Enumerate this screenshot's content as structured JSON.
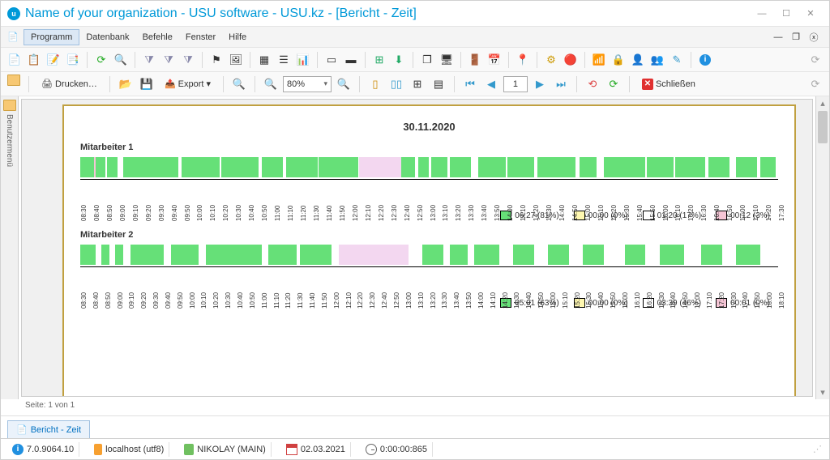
{
  "title": "Name of your organization - USU software - USU.kz - [Bericht - Zeit]",
  "menu": {
    "items": [
      "Programm",
      "Datenbank",
      "Befehle",
      "Fenster",
      "Hilfe"
    ],
    "active": 0
  },
  "sidetab": {
    "label": "Benutzermenü"
  },
  "toolbar2": {
    "print": "Drucken…",
    "export": "Export",
    "zoom": "80%",
    "page_current": "1",
    "close": "Schließen"
  },
  "report": {
    "date": "30.11.2020",
    "colors": {
      "green": "#66e078",
      "yellow": "#fff8b0",
      "white": "#ffffff",
      "pink": "#f5c5d5",
      "idle": "#f3d7f0"
    },
    "employees": [
      {
        "label": "Mitarbeiter 1",
        "ticks_start": "08:30",
        "ticks_end": "17:30",
        "tick_min": 10,
        "segments": [
          {
            "s": 0,
            "e": 2.0,
            "c": "green"
          },
          {
            "s": 2.0,
            "e": 2.2,
            "c": "pink"
          },
          {
            "s": 2.2,
            "e": 3.6,
            "c": "green"
          },
          {
            "s": 3.8,
            "e": 5.4,
            "c": "green"
          },
          {
            "s": 6.2,
            "e": 14,
            "c": "green"
          },
          {
            "s": 14.5,
            "e": 20,
            "c": "green"
          },
          {
            "s": 20.2,
            "e": 25.5,
            "c": "green"
          },
          {
            "s": 26,
            "e": 29,
            "c": "green"
          },
          {
            "s": 29.5,
            "e": 34,
            "c": "green"
          },
          {
            "s": 34.2,
            "e": 39.8,
            "c": "green"
          },
          {
            "s": 40,
            "e": 46,
            "c": "idle"
          },
          {
            "s": 46,
            "e": 48,
            "c": "green"
          },
          {
            "s": 48.4,
            "e": 50,
            "c": "green"
          },
          {
            "s": 50.3,
            "e": 52.6,
            "c": "green"
          },
          {
            "s": 53,
            "e": 56,
            "c": "green"
          },
          {
            "s": 57,
            "e": 61,
            "c": "green"
          },
          {
            "s": 61.2,
            "e": 65,
            "c": "green"
          },
          {
            "s": 65.5,
            "e": 71,
            "c": "green"
          },
          {
            "s": 71.5,
            "e": 74,
            "c": "green"
          },
          {
            "s": 75,
            "e": 81,
            "c": "green"
          },
          {
            "s": 81.2,
            "e": 85,
            "c": "green"
          },
          {
            "s": 85.2,
            "e": 89.5,
            "c": "green"
          },
          {
            "s": 90,
            "e": 93,
            "c": "green"
          },
          {
            "s": 94,
            "e": 97,
            "c": "green"
          },
          {
            "s": 97.5,
            "e": 99.7,
            "c": "green"
          }
        ],
        "legend": [
          {
            "c": "green",
            "t": "06:27 (81%)"
          },
          {
            "c": "yellow",
            "t": "00:00 (0%)"
          },
          {
            "c": "white",
            "t": "01:20 (17%)"
          },
          {
            "c": "pink",
            "t": "00:12 (3%)"
          }
        ]
      },
      {
        "label": "Mitarbeiter 2",
        "ticks_start": "08:30",
        "ticks_end": "18:10",
        "tick_min": 10,
        "segments": [
          {
            "s": 0,
            "e": 2.2,
            "c": "green"
          },
          {
            "s": 3,
            "e": 4.2,
            "c": "green"
          },
          {
            "s": 5,
            "e": 6.2,
            "c": "green"
          },
          {
            "s": 7.2,
            "e": 12,
            "c": "green"
          },
          {
            "s": 13,
            "e": 17,
            "c": "green"
          },
          {
            "s": 18,
            "e": 26,
            "c": "green"
          },
          {
            "s": 27,
            "e": 31,
            "c": "green"
          },
          {
            "s": 31.5,
            "e": 36,
            "c": "green"
          },
          {
            "s": 37,
            "e": 47,
            "c": "idle"
          },
          {
            "s": 49,
            "e": 52,
            "c": "green"
          },
          {
            "s": 53,
            "e": 55.5,
            "c": "green"
          },
          {
            "s": 56.5,
            "e": 60,
            "c": "green"
          },
          {
            "s": 62,
            "e": 65,
            "c": "green"
          },
          {
            "s": 67,
            "e": 70,
            "c": "green"
          },
          {
            "s": 72,
            "e": 75,
            "c": "green"
          },
          {
            "s": 78,
            "e": 81,
            "c": "green"
          },
          {
            "s": 83,
            "e": 86.5,
            "c": "green"
          },
          {
            "s": 89,
            "e": 92,
            "c": "green"
          },
          {
            "s": 94,
            "e": 97.5,
            "c": "green"
          }
        ],
        "legend": [
          {
            "c": "green",
            "t": "05:01 (63%)"
          },
          {
            "c": "yellow",
            "t": "00:00 (0%)"
          },
          {
            "c": "white",
            "t": "03:39 (46%)"
          },
          {
            "c": "pink",
            "t": "00:01 (0%)"
          }
        ]
      }
    ]
  },
  "pager": "Seite: 1 von 1",
  "doctab": "Bericht - Zeit",
  "status": {
    "version": "7.0.9064.10",
    "host": "localhost (utf8)",
    "user": "NIKOLAY (MAIN)",
    "date": "02.03.2021",
    "elapsed": "0:00:00:865"
  }
}
